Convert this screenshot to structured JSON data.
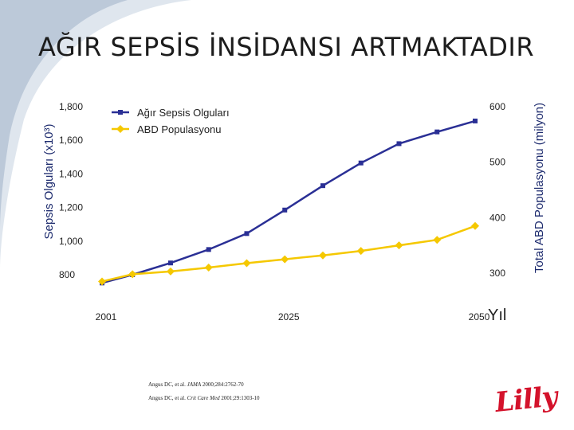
{
  "slide": {
    "title": "AĞIR SEPSİS İNSİDANSI ARTMAKTADIR",
    "logo_text": "Lilly",
    "references": [
      {
        "before": "Angus DC, et al. ",
        "journal": "JAMA",
        "after": " 2000;284:2762-70"
      },
      {
        "before": "Angus DC, et al. ",
        "journal": "Crit Care Med",
        "after": " 2001;29:1303-10"
      }
    ]
  },
  "colors": {
    "series_cases": "#2a2f95",
    "series_population": "#f5c800",
    "axis_title": "#1d2b6e",
    "swoosh": "#6f8fb3",
    "logo": "#d4122b"
  },
  "chart_data": {
    "type": "line",
    "title": "",
    "xlabel": "Yıl",
    "ylabel_left": "Sepsis Olguları (x10³)",
    "ylabel_right": "Total ABD Populasyonu (milyon)",
    "x": [
      2001,
      2005,
      2010,
      2015,
      2020,
      2025,
      2030,
      2035,
      2040,
      2045,
      2050
    ],
    "x_ticks": [
      "2001",
      "2025",
      "2050"
    ],
    "y_left_ticks": [
      "800",
      "1,000",
      "1,200",
      "1,400",
      "1,600",
      "1,800"
    ],
    "y_left_range": [
      800,
      1800
    ],
    "y_right_ticks": [
      "300",
      "400",
      "500",
      "600"
    ],
    "y_right_range": [
      300,
      600
    ],
    "grid": false,
    "legend_position": "top-left",
    "series": [
      {
        "name": "Ağır Sepsis Olguları",
        "axis": "left",
        "marker": "square",
        "values": [
          751,
          800,
          870,
          950,
          1045,
          1185,
          1330,
          1465,
          1580,
          1650,
          1715
        ]
      },
      {
        "name": "ABD Populasyonu",
        "axis": "right",
        "marker": "diamond",
        "values": [
          285,
          298,
          303,
          310,
          318,
          325,
          332,
          340,
          350,
          360,
          385
        ]
      }
    ]
  }
}
